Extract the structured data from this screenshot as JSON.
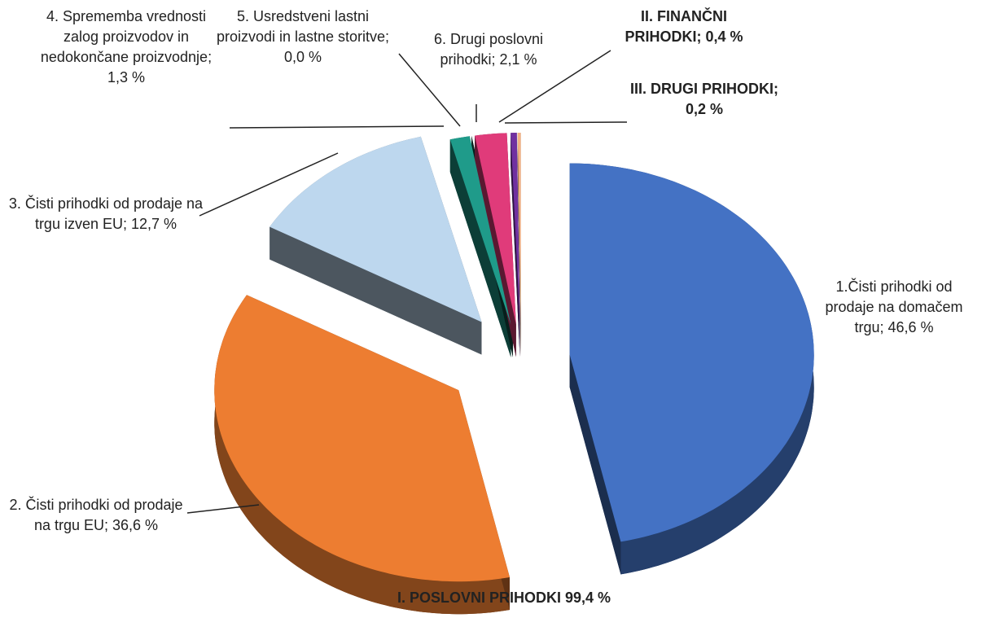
{
  "chart_data": {
    "type": "pie",
    "categories": [
      "1.Čisti prihodki od prodaje na domačem trgu",
      "2. Čisti prihodki od prodaje na trgu EU",
      "3. Čisti prihodki od prodaje na trgu izven EU",
      "4. Sprememba vrednosti zalog proizvodov in nedokončane proizvodnje",
      "5. Usredstveni lastni proizvodi in lastne storitve",
      "6. Drugi poslovni prihodki",
      "II. FINANČNI PRIHODKI",
      "III. DRUGI PRIHODKI"
    ],
    "values": [
      46.6,
      36.6,
      12.7,
      1.3,
      0.0,
      2.1,
      0.4,
      0.2
    ],
    "value_labels": [
      "46,6 %",
      "36,6 %",
      "12,7 %",
      "1,3 %",
      "0,0 %",
      "2,1 %",
      "0,4 %",
      "0,2 %"
    ],
    "label_separator": "; ",
    "colors": [
      "#4472c4",
      "#ed7d31",
      "#bdd7ee",
      "#1f9b8a",
      "#0f4d45",
      "#e03b7a",
      "#7030a0",
      "#f4b183"
    ],
    "annotation": "I. POSLOVNI PRIHODKI 99,4 %"
  }
}
